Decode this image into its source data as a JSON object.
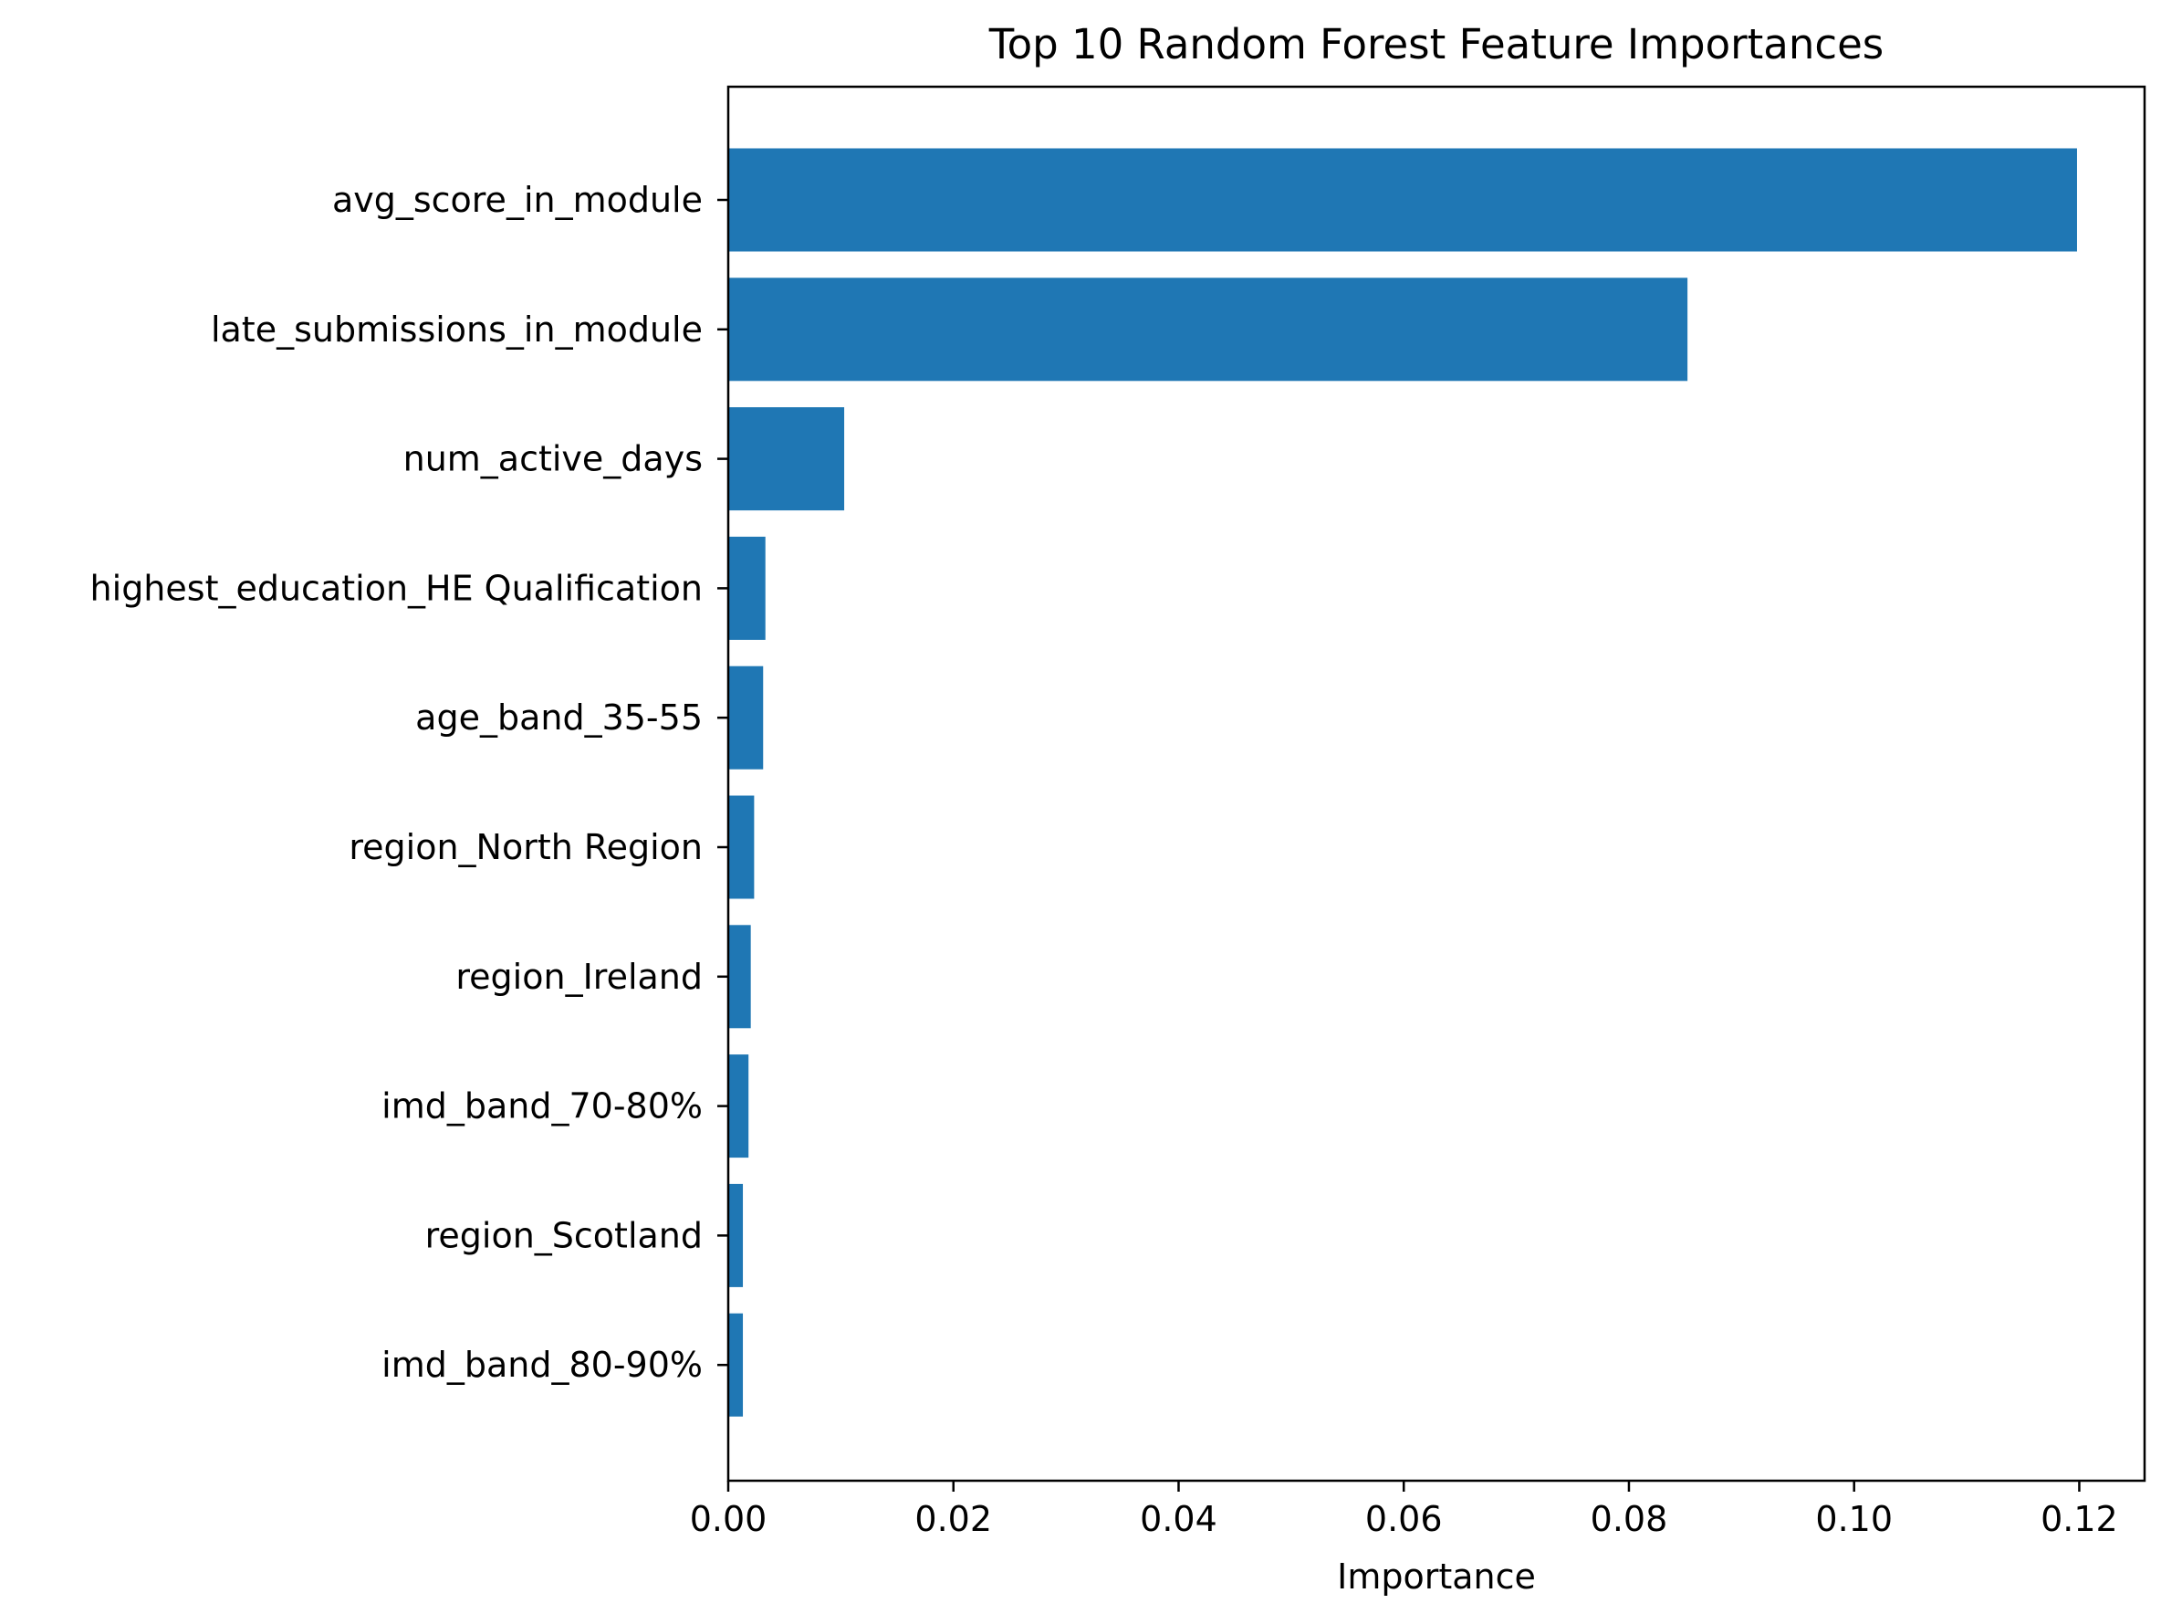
{
  "chart_data": {
    "type": "bar",
    "orientation": "horizontal",
    "title": "Top 10 Random Forest Feature Importances",
    "xlabel": "Importance",
    "ylabel": "",
    "categories": [
      "avg_score_in_module",
      "late_submissions_in_module",
      "num_active_days",
      "highest_education_HE Qualification",
      "age_band_35-55",
      "region_North Region",
      "region_Ireland",
      "imd_band_70-80%",
      "region_Scotland",
      "imd_band_80-90%"
    ],
    "values": [
      0.1198,
      0.0852,
      0.0103,
      0.0033,
      0.0031,
      0.0023,
      0.002,
      0.0018,
      0.0013,
      0.0013
    ],
    "xlim": [
      0,
      0.1258
    ],
    "xticks": [
      0.0,
      0.02,
      0.04,
      0.06,
      0.08,
      0.1,
      0.12
    ],
    "xtick_labels": [
      "0.00",
      "0.02",
      "0.04",
      "0.06",
      "0.08",
      "0.10",
      "0.12"
    ],
    "grid": false,
    "bar_color": "#1f77b4"
  }
}
